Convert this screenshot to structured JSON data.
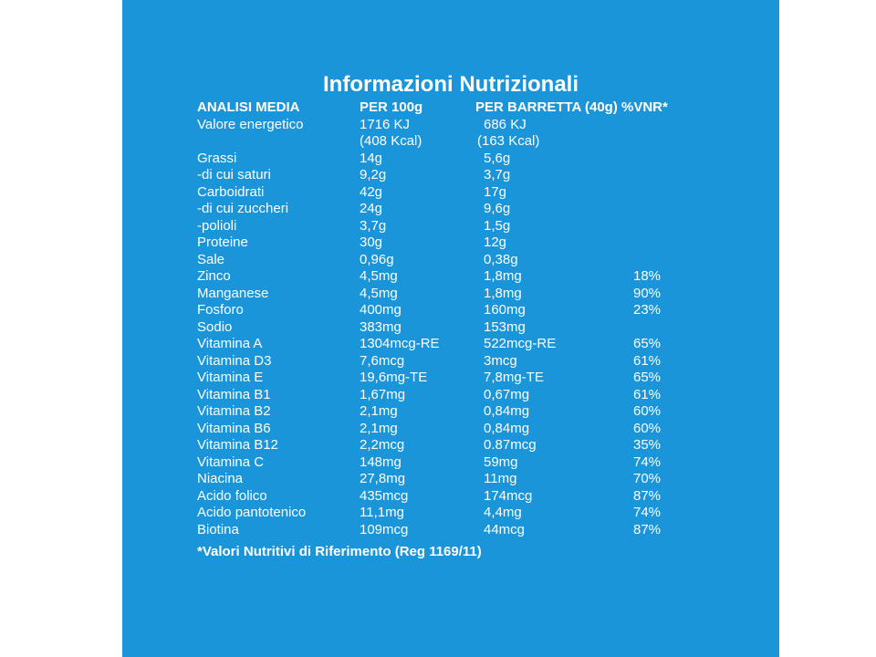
{
  "colors": {
    "panel_background": "#1a95da",
    "text": "#ffffff"
  },
  "title": "Informazioni Nutrizionali",
  "header": {
    "col0": "ANALISI MEDIA",
    "col1": "PER 100g",
    "col2": "PER BARRETTA (40g) %VNR*"
  },
  "energy": {
    "label": "Valore energetico",
    "per100_kj": "1716 KJ",
    "bar_kj": "686 KJ",
    "per100_kcal": "(408 Kcal)",
    "bar_kcal": "(163 Kcal)"
  },
  "rows": [
    {
      "name": "Grassi",
      "per100": "14g",
      "bar": "5,6g",
      "vnr": ""
    },
    {
      "name": "-di cui saturi",
      "per100": "9,2g",
      "bar": "3,7g",
      "vnr": ""
    },
    {
      "name": "Carboidrati",
      "per100": "42g",
      "bar": "17g",
      "vnr": ""
    },
    {
      "name": "-di cui zuccheri",
      "per100": "24g",
      "bar": "9,6g",
      "vnr": ""
    },
    {
      "name": "-polioli",
      "per100": "3,7g",
      "bar": "1,5g",
      "vnr": ""
    },
    {
      "name": "Proteine",
      "per100": "30g",
      "bar": "12g",
      "vnr": ""
    },
    {
      "name": "Sale",
      "per100": "0,96g",
      "bar": "0,38g",
      "vnr": ""
    },
    {
      "name": "Zinco",
      "per100": "4,5mg",
      "bar": "1,8mg",
      "vnr": "18%"
    },
    {
      "name": "Manganese",
      "per100": "4,5mg",
      "bar": "1,8mg",
      "vnr": "90%"
    },
    {
      "name": "Fosforo",
      "per100": "400mg",
      "bar": "160mg",
      "vnr": "23%"
    },
    {
      "name": "Sodio",
      "per100": "383mg",
      "bar": "153mg",
      "vnr": ""
    },
    {
      "name": "Vitamina A",
      "per100": "1304mcg-RE",
      "bar": "522mcg-RE",
      "vnr": "65%"
    },
    {
      "name": "Vitamina D3",
      "per100": "7,6mcg",
      "bar": "3mcg",
      "vnr": "61%"
    },
    {
      "name": "Vitamina E",
      "per100": "19,6mg-TE",
      "bar": "7,8mg-TE",
      "vnr": "65%"
    },
    {
      "name": "Vitamina B1",
      "per100": "1,67mg",
      "bar": "0,67mg",
      "vnr": "61%"
    },
    {
      "name": "Vitamina B2",
      "per100": "2,1mg",
      "bar": "0,84mg",
      "vnr": "60%"
    },
    {
      "name": "Vitamina B6",
      "per100": "2,1mg",
      "bar": "0,84mg",
      "vnr": "60%"
    },
    {
      "name": "Vitamina B12",
      "per100": "2,2mcg",
      "bar": "0.87mcg",
      "vnr": "35%"
    },
    {
      "name": "Vitamina C",
      "per100": "148mg",
      "bar": "59mg",
      "vnr": "74%"
    },
    {
      "name": "Niacina",
      "per100": "27,8mg",
      "bar": "11mg",
      "vnr": "70%"
    },
    {
      "name": "Acido folico",
      "per100": "435mcg",
      "bar": "174mcg",
      "vnr": "87%"
    },
    {
      "name": "Acido pantotenico",
      "per100": "11,1mg",
      "bar": "4,4mg",
      "vnr": "74%"
    },
    {
      "name": "Biotina",
      "per100": "109mcg",
      "bar": "44mcg",
      "vnr": "87%"
    }
  ],
  "footnote": "*Valori Nutritivi di Riferimento (Reg 1169/11)"
}
